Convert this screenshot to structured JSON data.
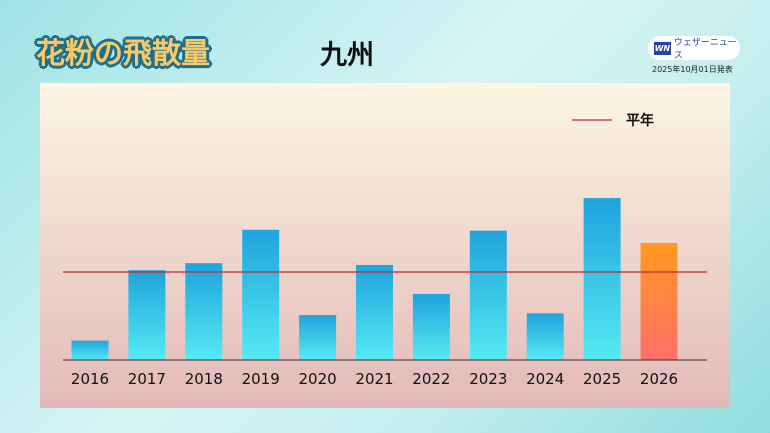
{
  "header": {
    "title": "花粉の飛散量",
    "region": "九州"
  },
  "logo": {
    "mark": "WN",
    "text": "ウェザーニュース"
  },
  "published": "2025年10月01日発表",
  "chart_data": {
    "type": "bar",
    "categories": [
      "2016",
      "2017",
      "2018",
      "2019",
      "2020",
      "2021",
      "2022",
      "2023",
      "2024",
      "2025",
      "2026"
    ],
    "values": [
      22,
      102,
      110,
      148,
      51,
      108,
      75,
      147,
      53,
      184,
      133
    ],
    "reference_line": {
      "name": "平年",
      "value": 100,
      "color": "#c0282a"
    },
    "colors": {
      "past": [
        "#1fa3dd",
        "#55eaf2"
      ],
      "forecast": [
        "#ff9a22",
        "#ff6f6a"
      ]
    },
    "yaxis_shown": false,
    "legend": "top-right"
  }
}
